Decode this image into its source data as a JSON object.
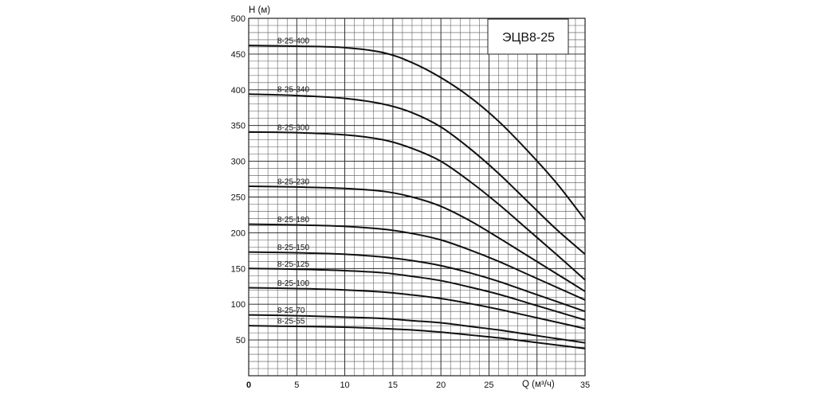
{
  "chart_data": {
    "type": "line",
    "title": "ЭЦВ8-25",
    "xlabel": "Q (м³/ч)",
    "ylabel": "H (м)",
    "xlim": [
      0,
      35
    ],
    "ylim": [
      0,
      500
    ],
    "grid": true,
    "x_ticks": [
      "0",
      "5",
      "10",
      "15",
      "20",
      "25",
      "35"
    ],
    "y_ticks": [
      "50",
      "100",
      "150",
      "200",
      "250",
      "300",
      "350",
      "400",
      "450",
      "500"
    ],
    "series": [
      {
        "name": "8-25-400",
        "x": [
          0,
          5,
          10,
          14,
          17,
          20,
          23,
          26,
          29,
          32,
          35
        ],
        "y": [
          462,
          461,
          459,
          452,
          438,
          417,
          390,
          356,
          315,
          270,
          218
        ]
      },
      {
        "name": "8-25-340",
        "x": [
          0,
          5,
          10,
          14,
          17,
          20,
          23,
          26,
          29,
          32,
          35
        ],
        "y": [
          394,
          392,
          388,
          380,
          368,
          348,
          318,
          283,
          244,
          205,
          170
        ]
      },
      {
        "name": "8-25-300",
        "x": [
          0,
          5,
          10,
          14,
          17,
          20,
          23,
          26,
          29,
          32,
          35
        ],
        "y": [
          341,
          340,
          337,
          330,
          318,
          300,
          272,
          240,
          205,
          170,
          134
        ]
      },
      {
        "name": "8-25-230",
        "x": [
          0,
          5,
          10,
          14,
          17,
          20,
          23,
          26,
          29,
          32,
          35
        ],
        "y": [
          265,
          264,
          262,
          258,
          250,
          237,
          217,
          193,
          168,
          143,
          118
        ]
      },
      {
        "name": "8-25-180",
        "x": [
          0,
          5,
          10,
          14,
          17,
          20,
          23,
          26,
          29,
          32,
          35
        ],
        "y": [
          212,
          211,
          209,
          205,
          199,
          190,
          176,
          160,
          142,
          124,
          106
        ]
      },
      {
        "name": "8-25-150",
        "x": [
          0,
          5,
          10,
          14,
          17,
          20,
          23,
          26,
          29,
          32,
          35
        ],
        "y": [
          173,
          172,
          170,
          166,
          161,
          154,
          144,
          132,
          118,
          104,
          90
        ]
      },
      {
        "name": "8-25-125",
        "x": [
          0,
          5,
          10,
          14,
          17,
          20,
          23,
          26,
          29,
          32,
          35
        ],
        "y": [
          150,
          149,
          147,
          144,
          139,
          133,
          124,
          114,
          102,
          90,
          78
        ]
      },
      {
        "name": "8-25-100",
        "x": [
          0,
          5,
          10,
          14,
          17,
          20,
          23,
          26,
          29,
          32,
          35
        ],
        "y": [
          123,
          122,
          120,
          117,
          113,
          108,
          101,
          93,
          84,
          75,
          66
        ]
      },
      {
        "name": "8-25-70",
        "x": [
          0,
          5,
          10,
          14,
          17,
          20,
          23,
          26,
          29,
          32,
          35
        ],
        "y": [
          85,
          84,
          82,
          80,
          77,
          74,
          69,
          64,
          58,
          52,
          46
        ]
      },
      {
        "name": "8-25-55",
        "x": [
          0,
          5,
          10,
          14,
          17,
          20,
          23,
          26,
          29,
          32,
          35
        ],
        "y": [
          70,
          69,
          68,
          66,
          64,
          61,
          57,
          53,
          48,
          43,
          38
        ]
      }
    ]
  }
}
